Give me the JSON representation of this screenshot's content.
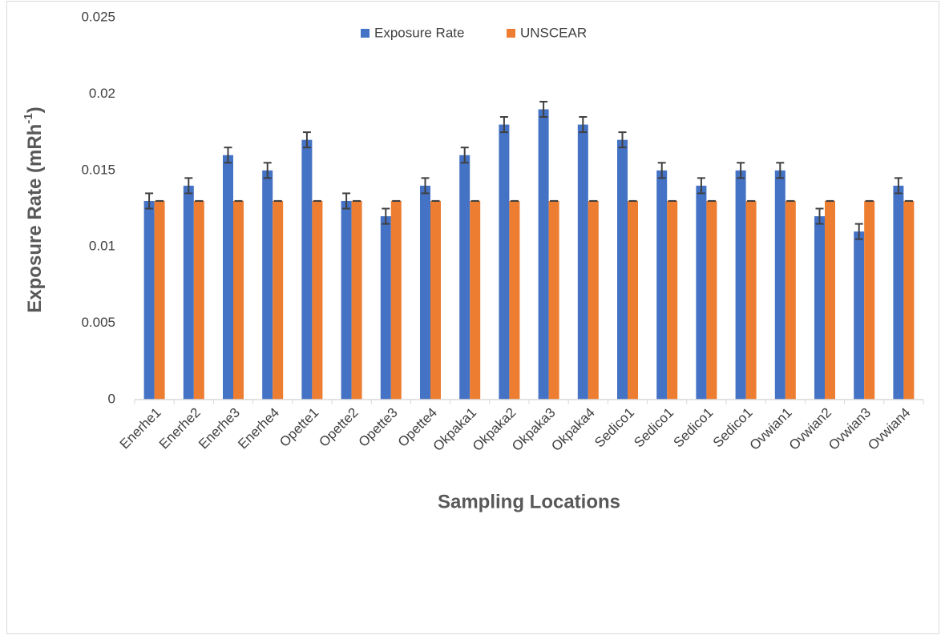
{
  "chart_data": {
    "type": "bar",
    "x_label": "Sampling Locations",
    "y_label": {
      "text": "Exposure Rate (mRh",
      "superscript": "-1",
      "suffix": ")"
    },
    "categories": [
      "Enerhe1",
      "Enerhe2",
      "Enerhe3",
      "Enerhe4",
      "Opette1",
      "Opette2",
      "Opette3",
      "Opette4",
      "Okpaka1",
      "Okpaka2",
      "Okpaka3",
      "Okpaka4",
      "Sedico1",
      "Sedico1",
      "Sedico1",
      "Sedico1",
      "Ovwian1",
      "Ovwian2",
      "Ovwian3",
      "Ovwian4"
    ],
    "series": [
      {
        "name": "Exposure Rate",
        "color": "#4472c4",
        "values": [
          0.013,
          0.014,
          0.016,
          0.015,
          0.017,
          0.013,
          0.012,
          0.014,
          0.016,
          0.018,
          0.019,
          0.018,
          0.017,
          0.015,
          0.014,
          0.015,
          0.015,
          0.012,
          0.011,
          0.014
        ],
        "errors": [
          0.0005,
          0.0005,
          0.0005,
          0.0005,
          0.0005,
          0.0005,
          0.0005,
          0.0005,
          0.0005,
          0.0005,
          0.0005,
          0.0005,
          0.0005,
          0.0005,
          0.0005,
          0.0005,
          0.0005,
          0.0005,
          0.0005,
          0.0005
        ]
      },
      {
        "name": "UNSCEAR",
        "color": "#ed7d31",
        "values": [
          0.013,
          0.013,
          0.013,
          0.013,
          0.013,
          0.013,
          0.013,
          0.013,
          0.013,
          0.013,
          0.013,
          0.013,
          0.013,
          0.013,
          0.013,
          0.013,
          0.013,
          0.013,
          0.013,
          0.013
        ],
        "errors": [
          0,
          0,
          0,
          0,
          0,
          0,
          0,
          0,
          0,
          0,
          0,
          0,
          0,
          0,
          0,
          0,
          0,
          0,
          0,
          0
        ]
      }
    ],
    "ylim": [
      0,
      0.025
    ],
    "yticks": [
      0,
      0.005,
      0.01,
      0.015,
      0.02,
      0.025
    ],
    "legend": "top"
  }
}
